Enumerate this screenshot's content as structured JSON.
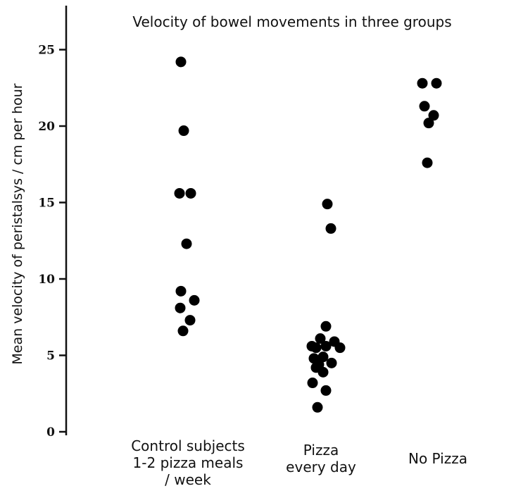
{
  "chart_data": {
    "type": "scatter",
    "title": "Velocity of bowel movements in three groups",
    "ylabel": "Mean velocity of peristalsys / cm per hour",
    "ylim": [
      0,
      27
    ],
    "yticks": [
      "0",
      "5",
      "10",
      "15",
      "20",
      "25"
    ],
    "categories": [
      [
        "Control subjects",
        "1-2 pizza meals",
        "/ week"
      ],
      [
        "Pizza",
        "every day"
      ],
      [
        "No Pizza"
      ]
    ],
    "series": [
      {
        "values": [
          24.2,
          19.7,
          15.6,
          15.6,
          12.3,
          9.2,
          8.6,
          8.1,
          7.3,
          6.6
        ]
      },
      {
        "values": [
          14.9,
          13.3,
          6.9,
          6.1,
          5.9,
          5.6,
          5.6,
          5.5,
          5.5,
          4.9,
          4.8,
          4.5,
          4.4,
          4.2,
          3.9,
          3.2,
          2.7,
          1.6
        ]
      },
      {
        "values": [
          22.8,
          22.8,
          21.3,
          20.7,
          20.2,
          17.6
        ]
      }
    ]
  }
}
